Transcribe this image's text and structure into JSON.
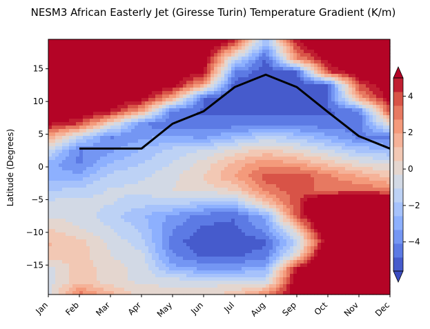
{
  "chart_data": {
    "type": "heatmap",
    "title": "NESM3 African Easterly Jet (Giresse Turin) Temperature Gradient (K/m)",
    "xlabel": "",
    "ylabel": "Latitude (Degrees)",
    "months": [
      "Jan",
      "Feb",
      "Mar",
      "Apr",
      "May",
      "Jun",
      "Jul",
      "Aug",
      "Sep",
      "Oct",
      "Nov",
      "Dec"
    ],
    "latitudes": [
      -19.5,
      -17.5,
      -15.5,
      -13.5,
      -11.5,
      -9.5,
      -7.5,
      -5.5,
      -3.5,
      -1.5,
      0.5,
      2.5,
      4.5,
      6.5,
      8.5,
      10.5,
      12.5,
      14.5,
      16.5,
      19.5
    ],
    "ylim": [
      -19.5,
      19.5
    ],
    "y_ticks": [
      -15,
      -10,
      -5,
      0,
      5,
      10,
      15
    ],
    "colorbar": {
      "ticks": [
        4,
        2,
        0,
        -2,
        -4
      ],
      "range": [
        -5.6,
        5
      ],
      "colormap": "coolwarm",
      "extend": "both",
      "color_low": "#3b4cc0",
      "color_high": "#b40426"
    },
    "field": [
      [
        -0.5,
        3.2,
        1.5,
        0.2,
        0.0,
        0.2,
        0.8,
        2.8,
        6.0,
        8.0,
        8.0,
        7.0
      ],
      [
        -0.8,
        1.0,
        0.0,
        -0.5,
        -0.5,
        -0.8,
        -0.5,
        -1.0,
        6.0,
        8.0,
        8.0,
        7.0
      ],
      [
        -0.8,
        1.0,
        0.0,
        -0.5,
        -3.0,
        -3.5,
        -3.5,
        -3.0,
        5.0,
        8.0,
        8.0,
        7.0
      ],
      [
        1.0,
        0.8,
        -0.3,
        -0.8,
        -4.0,
        -5.0,
        -5.0,
        -4.5,
        0.0,
        8.0,
        8.0,
        7.0
      ],
      [
        1.3,
        0.8,
        -0.5,
        -1.5,
        -4.5,
        -5.5,
        -5.5,
        -5.0,
        -1.5,
        6.0,
        7.0,
        6.0
      ],
      [
        0.5,
        -0.3,
        -1.0,
        -2.0,
        -4.0,
        -5.0,
        -5.0,
        -3.8,
        0.5,
        7.5,
        8.0,
        7.0
      ],
      [
        -0.5,
        -0.5,
        -1.5,
        -2.5,
        -3.5,
        -4.5,
        -4.8,
        -3.0,
        4.0,
        8.0,
        8.0,
        8.0
      ],
      [
        -0.8,
        -0.7,
        -1.0,
        -1.5,
        -1.5,
        -2.0,
        -2.0,
        1.0,
        4.0,
        8.0,
        8.0,
        8.0
      ],
      [
        -2.0,
        -1.5,
        -1.0,
        -0.8,
        -0.3,
        0.0,
        0.5,
        3.0,
        4.0,
        3.0,
        3.5,
        3.0
      ],
      [
        -3.0,
        -3.0,
        -1.5,
        -1.2,
        -0.5,
        0.5,
        2.0,
        3.8,
        4.3,
        3.0,
        2.0,
        1.0
      ],
      [
        -3.0,
        -4.2,
        -2.5,
        -1.8,
        -1.0,
        0.0,
        1.5,
        2.5,
        2.0,
        1.0,
        0.0,
        -0.5
      ],
      [
        -1.0,
        -4.2,
        -3.5,
        -2.5,
        -1.5,
        -1.0,
        0.0,
        0.8,
        0.0,
        -1.0,
        -2.0,
        -2.5
      ],
      [
        2.0,
        -1.5,
        -4.2,
        -3.5,
        -3.0,
        -3.5,
        -2.5,
        -1.5,
        -2.0,
        -3.0,
        -4.2,
        -4.5
      ],
      [
        5.0,
        4.0,
        0.0,
        -4.2,
        -4.5,
        -4.5,
        -4.5,
        -4.5,
        -4.5,
        -4.5,
        -4.5,
        0.0
      ],
      [
        7.0,
        6.0,
        5.0,
        2.0,
        -4.5,
        -5.0,
        -5.0,
        -5.0,
        -5.0,
        -5.0,
        -4.5,
        4.0
      ],
      [
        8.0,
        7.0,
        6.0,
        5.5,
        2.0,
        -5.0,
        -5.5,
        -5.5,
        -5.5,
        -5.0,
        2.0,
        5.5
      ],
      [
        8.0,
        8.0,
        7.0,
        6.5,
        5.5,
        2.0,
        -5.5,
        -5.5,
        -5.5,
        -5.0,
        4.0,
        6.0
      ],
      [
        8.0,
        8.0,
        8.0,
        7.0,
        6.5,
        5.0,
        -4.0,
        -5.5,
        -5.0,
        4.0,
        6.0,
        7.0
      ],
      [
        8.0,
        8.0,
        8.0,
        8.0,
        7.0,
        6.0,
        -1.0,
        -5.0,
        2.5,
        5.5,
        7.0,
        8.0
      ],
      [
        8.0,
        8.0,
        8.0,
        8.0,
        8.0,
        7.0,
        5.0,
        -2.0,
        5.0,
        8.0,
        8.0,
        8.0
      ]
    ],
    "series": [
      {
        "x": [
          "Feb",
          "Mar",
          "Apr",
          "May",
          "Jun",
          "Jul",
          "Aug",
          "Sep",
          "Oct",
          "Nov",
          "Dec"
        ],
        "values": [
          2.8,
          2.8,
          2.8,
          6.6,
          8.5,
          12.2,
          14.1,
          12.2,
          8.4,
          4.7,
          2.8
        ]
      }
    ]
  }
}
